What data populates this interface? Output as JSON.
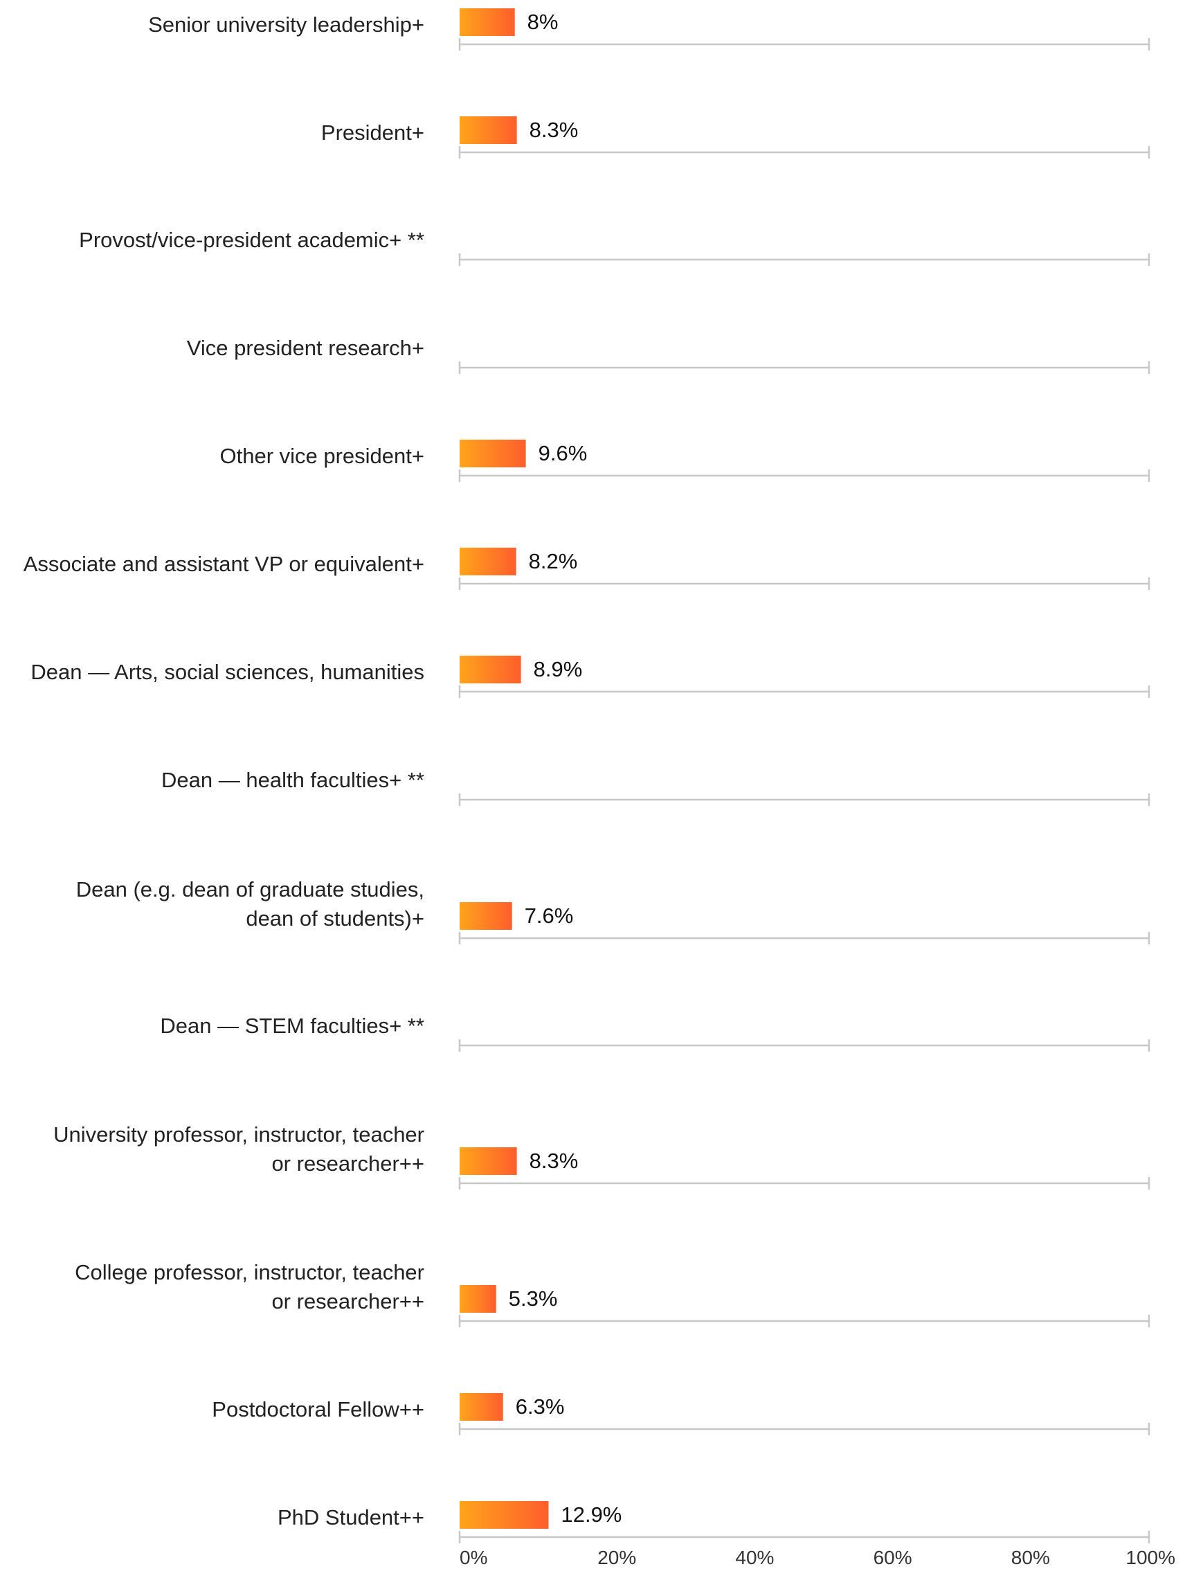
{
  "chart_data": {
    "type": "bar",
    "orientation": "horizontal",
    "title": "",
    "xlabel": "",
    "ylabel": "",
    "xlim": [
      0,
      100
    ],
    "x_ticks": [
      "0%",
      "20%",
      "40%",
      "60%",
      "80%",
      "100%"
    ],
    "grid": false,
    "legend": "none",
    "colors": {
      "bar_start": "#FFA41C",
      "bar_end": "#FF5E2C",
      "axis": "#C8C8C8"
    },
    "categories": [
      [
        "Senior university leadership+"
      ],
      [
        "President+"
      ],
      [
        "Provost/vice-president academic+ **"
      ],
      [
        "Vice president research+"
      ],
      [
        "Other vice president+"
      ],
      [
        "Associate and assistant VP or equivalent+"
      ],
      [
        "Dean — Arts, social sciences, humanities"
      ],
      [
        "Dean — health faculties+ **"
      ],
      [
        "Dean (e.g. dean of graduate studies,",
        "dean of students)+"
      ],
      [
        "Dean — STEM faculties+ **"
      ],
      [
        "University professor, instructor, teacher",
        "or researcher++"
      ],
      [
        "College professor, instructor, teacher",
        "or researcher++"
      ],
      [
        "Postdoctoral Fellow++"
      ],
      [
        "PhD Student++"
      ]
    ],
    "values": [
      8,
      8.3,
      null,
      null,
      9.6,
      8.2,
      8.9,
      null,
      7.6,
      null,
      8.3,
      5.3,
      6.3,
      12.9
    ],
    "value_labels": [
      "8%",
      "8.3%",
      "",
      "",
      "9.6%",
      "8.2%",
      "8.9%",
      "",
      "7.6%",
      "",
      "8.3%",
      "5.3%",
      "6.3%",
      "12.9%"
    ]
  }
}
